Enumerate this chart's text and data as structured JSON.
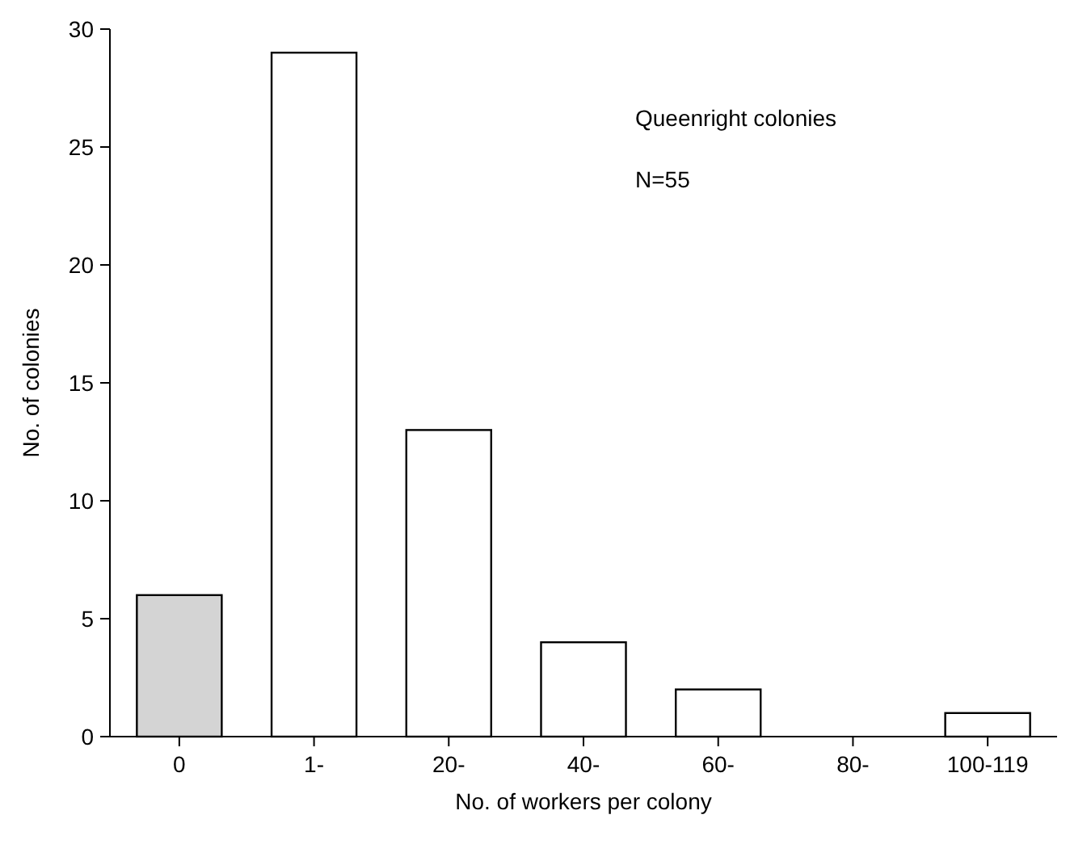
{
  "chart_data": {
    "type": "bar",
    "xlabel": "No. of workers per colony",
    "ylabel": "No. of colonies",
    "categories": [
      "0",
      "1-",
      "20-",
      "40-",
      "60-",
      "80-",
      "100-119"
    ],
    "values": [
      6,
      29,
      13,
      4,
      2,
      0,
      1
    ],
    "colors": [
      "#d4d4d4",
      "#ffffff",
      "#ffffff",
      "#ffffff",
      "#ffffff",
      "#ffffff",
      "#ffffff"
    ],
    "ylim": [
      0,
      30
    ],
    "yticks": [
      0,
      5,
      10,
      15,
      20,
      25,
      30
    ],
    "annotations": [
      "Queenright colonies",
      "N=55"
    ]
  }
}
